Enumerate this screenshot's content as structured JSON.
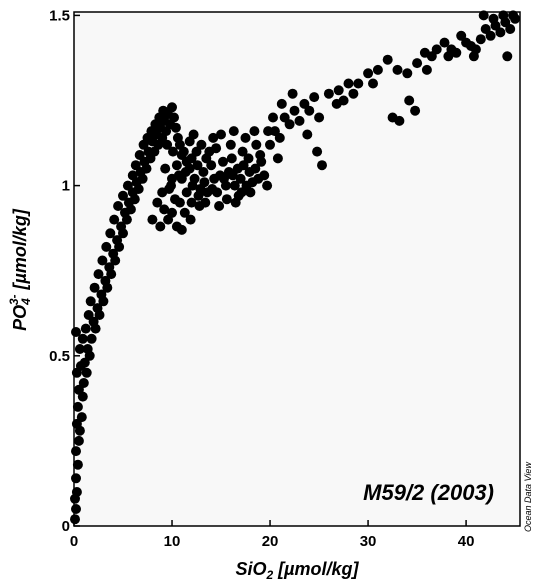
{
  "chart_data": {
    "type": "scatter",
    "title": "",
    "annotation": "M59/2 (2003)",
    "credit": "Ocean Data View",
    "x_axis": {
      "label_base": "SiO",
      "label_sub": "2",
      "label_unit": " [µmol/kg]",
      "range": [
        0,
        45.5
      ],
      "ticks": [
        0,
        10,
        20,
        30,
        40
      ],
      "tick_labels": [
        "0",
        "10",
        "20",
        "30",
        "40"
      ]
    },
    "y_axis": {
      "label_base": "PO",
      "label_sub": "4",
      "label_sup": "3-",
      "label_unit": " [µmol/kg]",
      "range": [
        0,
        1.51
      ],
      "ticks": [
        0,
        0.5,
        1,
        1.5
      ],
      "tick_labels": [
        "0",
        "0.5",
        "1",
        "1.5"
      ]
    },
    "grid": false,
    "marker_color": "#000000",
    "plot_background": "#f8f8f8",
    "series": [
      {
        "points": [
          [
            0.1,
            0.02
          ],
          [
            0.2,
            0.05
          ],
          [
            0.1,
            0.08
          ],
          [
            0.3,
            0.1
          ],
          [
            0.2,
            0.14
          ],
          [
            0.4,
            0.18
          ],
          [
            0.2,
            0.22
          ],
          [
            0.5,
            0.25
          ],
          [
            0.3,
            0.3
          ],
          [
            0.6,
            0.28
          ],
          [
            0.4,
            0.35
          ],
          [
            0.8,
            0.32
          ],
          [
            0.5,
            0.4
          ],
          [
            0.9,
            0.38
          ],
          [
            0.3,
            0.45
          ],
          [
            0.7,
            0.47
          ],
          [
            1.0,
            0.42
          ],
          [
            0.6,
            0.52
          ],
          [
            1.1,
            0.48
          ],
          [
            1.3,
            0.45
          ],
          [
            0.2,
            0.57
          ],
          [
            0.9,
            0.55
          ],
          [
            1.4,
            0.52
          ],
          [
            1.6,
            0.5
          ],
          [
            1.2,
            0.58
          ],
          [
            1.8,
            0.55
          ],
          [
            2.0,
            0.6
          ],
          [
            1.5,
            0.62
          ],
          [
            2.2,
            0.58
          ],
          [
            2.4,
            0.64
          ],
          [
            1.7,
            0.66
          ],
          [
            2.6,
            0.62
          ],
          [
            2.8,
            0.68
          ],
          [
            2.1,
            0.7
          ],
          [
            3.0,
            0.66
          ],
          [
            3.2,
            0.72
          ],
          [
            2.5,
            0.74
          ],
          [
            3.4,
            0.7
          ],
          [
            3.6,
            0.76
          ],
          [
            2.9,
            0.78
          ],
          [
            3.8,
            0.74
          ],
          [
            4.0,
            0.8
          ],
          [
            3.3,
            0.82
          ],
          [
            4.2,
            0.78
          ],
          [
            4.4,
            0.84
          ],
          [
            3.7,
            0.86
          ],
          [
            4.6,
            0.82
          ],
          [
            4.8,
            0.88
          ],
          [
            4.1,
            0.9
          ],
          [
            5.0,
            0.86
          ],
          [
            5.2,
            0.92
          ],
          [
            4.5,
            0.94
          ],
          [
            5.4,
            0.9
          ],
          [
            5.6,
            0.95
          ],
          [
            5.0,
            0.97
          ],
          [
            5.8,
            0.93
          ],
          [
            6.0,
            0.98
          ],
          [
            5.5,
            1.0
          ],
          [
            6.2,
            0.96
          ],
          [
            6.4,
            1.01
          ],
          [
            6.0,
            1.03
          ],
          [
            6.6,
            0.99
          ],
          [
            6.8,
            1.04
          ],
          [
            6.3,
            1.06
          ],
          [
            7.0,
            1.02
          ],
          [
            7.2,
            1.07
          ],
          [
            6.7,
            1.09
          ],
          [
            7.4,
            1.05
          ],
          [
            7.6,
            1.1
          ],
          [
            7.1,
            1.12
          ],
          [
            7.8,
            1.08
          ],
          [
            8.0,
            1.13
          ],
          [
            7.5,
            1.14
          ],
          [
            8.2,
            1.1
          ],
          [
            8.4,
            1.15
          ],
          [
            7.9,
            1.16
          ],
          [
            8.6,
            1.12
          ],
          [
            8.8,
            1.17
          ],
          [
            8.3,
            1.18
          ],
          [
            9.0,
            1.14
          ],
          [
            9.2,
            1.19
          ],
          [
            8.7,
            1.2
          ],
          [
            9.4,
            1.16
          ],
          [
            9.6,
            1.21
          ],
          [
            9.1,
            1.22
          ],
          [
            9.8,
            1.18
          ],
          [
            10.0,
            1.23
          ],
          [
            10.2,
            1.2
          ],
          [
            10.4,
            1.17
          ],
          [
            10.6,
            1.14
          ],
          [
            9.5,
            1.12
          ],
          [
            10.1,
            1.1
          ],
          [
            10.8,
            1.12
          ],
          [
            11.0,
            1.09
          ],
          [
            9.3,
            1.05
          ],
          [
            10.0,
            1.02
          ],
          [
            10.5,
            1.06
          ],
          [
            11.2,
            1.1
          ],
          [
            11.5,
            1.07
          ],
          [
            9.0,
            0.98
          ],
          [
            9.7,
            0.99
          ],
          [
            10.3,
            0.96
          ],
          [
            11.0,
            1.02
          ],
          [
            11.8,
            1.05
          ],
          [
            12.0,
            1.08
          ],
          [
            8.5,
            0.95
          ],
          [
            9.2,
            0.93
          ],
          [
            10.0,
            0.92
          ],
          [
            10.8,
            0.95
          ],
          [
            11.5,
            0.98
          ],
          [
            12.3,
            1.02
          ],
          [
            12.6,
            1.06
          ],
          [
            8.0,
            0.9
          ],
          [
            8.8,
            0.88
          ],
          [
            9.6,
            0.9
          ],
          [
            10.5,
            0.88
          ],
          [
            11.3,
            0.92
          ],
          [
            12.0,
            0.95
          ],
          [
            12.9,
            0.99
          ],
          [
            13.2,
            1.04
          ],
          [
            13.5,
            1.08
          ],
          [
            12.5,
            1.1
          ],
          [
            13.0,
            1.12
          ],
          [
            11.8,
            1.13
          ],
          [
            12.2,
            1.15
          ],
          [
            13.8,
            1.1
          ],
          [
            14.0,
            1.06
          ],
          [
            14.3,
            1.02
          ],
          [
            13.6,
            0.98
          ],
          [
            12.8,
            0.94
          ],
          [
            11.9,
            0.9
          ],
          [
            11.0,
            0.87
          ],
          [
            14.6,
            0.98
          ],
          [
            14.9,
            1.03
          ],
          [
            15.2,
            1.07
          ],
          [
            14.5,
            1.11
          ],
          [
            15.5,
            1.0
          ],
          [
            15.8,
            1.04
          ],
          [
            16.1,
            1.08
          ],
          [
            15.6,
            0.96
          ],
          [
            16.4,
            1.0
          ],
          [
            16.7,
            1.05
          ],
          [
            16.0,
            1.12
          ],
          [
            17.0,
            1.02
          ],
          [
            17.3,
            1.06
          ],
          [
            16.8,
            0.97
          ],
          [
            17.6,
            1.0
          ],
          [
            17.9,
            1.04
          ],
          [
            17.2,
            1.1
          ],
          [
            18.2,
            1.01
          ],
          [
            18.5,
            1.05
          ],
          [
            18.0,
            0.98
          ],
          [
            18.8,
            1.02
          ],
          [
            19.1,
            1.07
          ],
          [
            18.6,
            1.12
          ],
          [
            19.4,
            1.03
          ],
          [
            19.7,
            1.0
          ],
          [
            14.2,
            1.14
          ],
          [
            15.0,
            1.15
          ],
          [
            16.3,
            1.16
          ],
          [
            17.5,
            1.14
          ],
          [
            18.4,
            1.16
          ],
          [
            13.4,
            0.95
          ],
          [
            14.8,
            0.94
          ],
          [
            16.5,
            0.95
          ],
          [
            9.9,
            1.0
          ],
          [
            10.7,
            1.03
          ],
          [
            11.4,
            1.04
          ],
          [
            12.1,
            1.0
          ],
          [
            12.7,
            0.97
          ],
          [
            13.3,
            1.01
          ],
          [
            14.1,
            0.99
          ],
          [
            15.3,
            1.02
          ],
          [
            16.2,
            1.03
          ],
          [
            17.1,
            0.98
          ],
          [
            17.8,
            1.08
          ],
          [
            19.0,
            1.09
          ],
          [
            20.0,
            1.12
          ],
          [
            20.5,
            1.16
          ],
          [
            21.0,
            1.14
          ],
          [
            21.5,
            1.2
          ],
          [
            22.0,
            1.18
          ],
          [
            22.5,
            1.22
          ],
          [
            23.0,
            1.19
          ],
          [
            23.5,
            1.24
          ],
          [
            24.0,
            1.22
          ],
          [
            24.5,
            1.26
          ],
          [
            25.0,
            1.2
          ],
          [
            22.3,
            1.27
          ],
          [
            21.2,
            1.24
          ],
          [
            20.3,
            1.2
          ],
          [
            23.8,
            1.15
          ],
          [
            24.8,
            1.1
          ],
          [
            25.3,
            1.06
          ],
          [
            19.8,
            1.16
          ],
          [
            20.8,
            1.08
          ],
          [
            26.0,
            1.27
          ],
          [
            27.0,
            1.28
          ],
          [
            28.0,
            1.3
          ],
          [
            29.0,
            1.3
          ],
          [
            30.0,
            1.33
          ],
          [
            31.0,
            1.34
          ],
          [
            30.5,
            1.3
          ],
          [
            32.0,
            1.37
          ],
          [
            33.0,
            1.34
          ],
          [
            34.0,
            1.33
          ],
          [
            32.5,
            1.2
          ],
          [
            33.2,
            1.19
          ],
          [
            34.8,
            1.22
          ],
          [
            34.2,
            1.25
          ],
          [
            35.0,
            1.36
          ],
          [
            35.8,
            1.39
          ],
          [
            36.5,
            1.38
          ],
          [
            37.0,
            1.4
          ],
          [
            37.8,
            1.42
          ],
          [
            38.5,
            1.4
          ],
          [
            39.0,
            1.39
          ],
          [
            39.5,
            1.44
          ],
          [
            40.0,
            1.42
          ],
          [
            40.5,
            1.41
          ],
          [
            41.0,
            1.4
          ],
          [
            41.5,
            1.43
          ],
          [
            42.0,
            1.46
          ],
          [
            42.5,
            1.44
          ],
          [
            43.0,
            1.47
          ],
          [
            43.5,
            1.45
          ],
          [
            44.0,
            1.48
          ],
          [
            44.5,
            1.46
          ],
          [
            45.0,
            1.49
          ],
          [
            41.8,
            1.5
          ],
          [
            42.8,
            1.49
          ],
          [
            43.8,
            1.5
          ],
          [
            44.8,
            1.5
          ],
          [
            44.2,
            1.38
          ],
          [
            40.8,
            1.38
          ],
          [
            38.2,
            1.38
          ],
          [
            36.0,
            1.34
          ],
          [
            28.5,
            1.27
          ],
          [
            27.5,
            1.25
          ],
          [
            26.8,
            1.24
          ]
        ]
      }
    ]
  }
}
